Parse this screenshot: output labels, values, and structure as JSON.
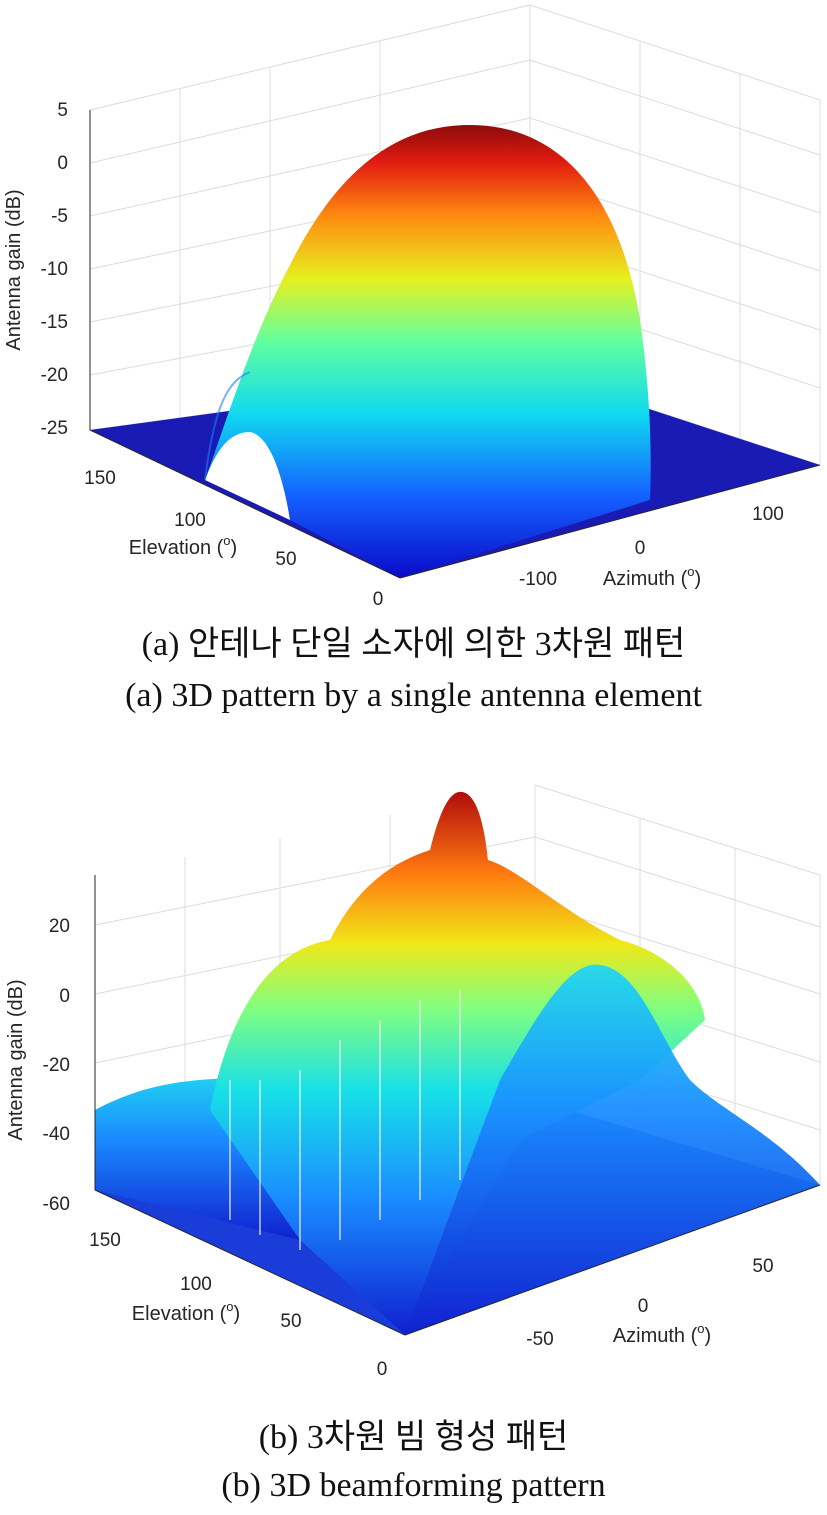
{
  "chart_data": [
    {
      "type": "surface",
      "colormap": "jet",
      "grid": true,
      "zlabel": "Antenna gain (dB)",
      "xlabel": "Elevation (o)",
      "xlabel_text": "Elevation (",
      "xlabel_sup": "o",
      "xlabel_close": ")",
      "ylabel_text": "Azimuth (",
      "ylabel_sup": "o",
      "ylabel_close": ")",
      "zlim": [
        -25,
        5
      ],
      "zticks": [
        "5",
        "0",
        "-5",
        "-10",
        "-15",
        "-20",
        "-25"
      ],
      "xlim": [
        0,
        180
      ],
      "xticks": [
        "150",
        "100",
        "50",
        "0"
      ],
      "ylim": [
        -180,
        180
      ],
      "yticks": [
        "-100",
        "0",
        "100"
      ],
      "peak_gain_db": 3,
      "floor_db": -25,
      "caption_ko": "(a) 안테나 단일 소자에 의한 3차원 패턴",
      "caption_en": "(a) 3D pattern by a single antenna element"
    },
    {
      "type": "surface",
      "colormap": "jet",
      "grid": true,
      "zlabel": "Antenna gain (dB)",
      "xlabel_text": "Elevation (",
      "xlabel_sup": "o",
      "xlabel_close": ")",
      "ylabel_text": "Azimuth (",
      "ylabel_sup": "o",
      "ylabel_close": ")",
      "zlim": [
        -60,
        25
      ],
      "zticks": [
        "20",
        "0",
        "-20",
        "-40",
        "-60"
      ],
      "xlim": [
        0,
        180
      ],
      "xticks": [
        "150",
        "100",
        "50",
        "0"
      ],
      "ylim": [
        -90,
        90
      ],
      "yticks": [
        "-50",
        "0",
        "50"
      ],
      "peak_gain_db": 22,
      "floor_db": -60,
      "caption_ko": "(b) 3차원 빔 형성 패턴",
      "caption_en": "(b) 3D beamforming pattern"
    }
  ]
}
